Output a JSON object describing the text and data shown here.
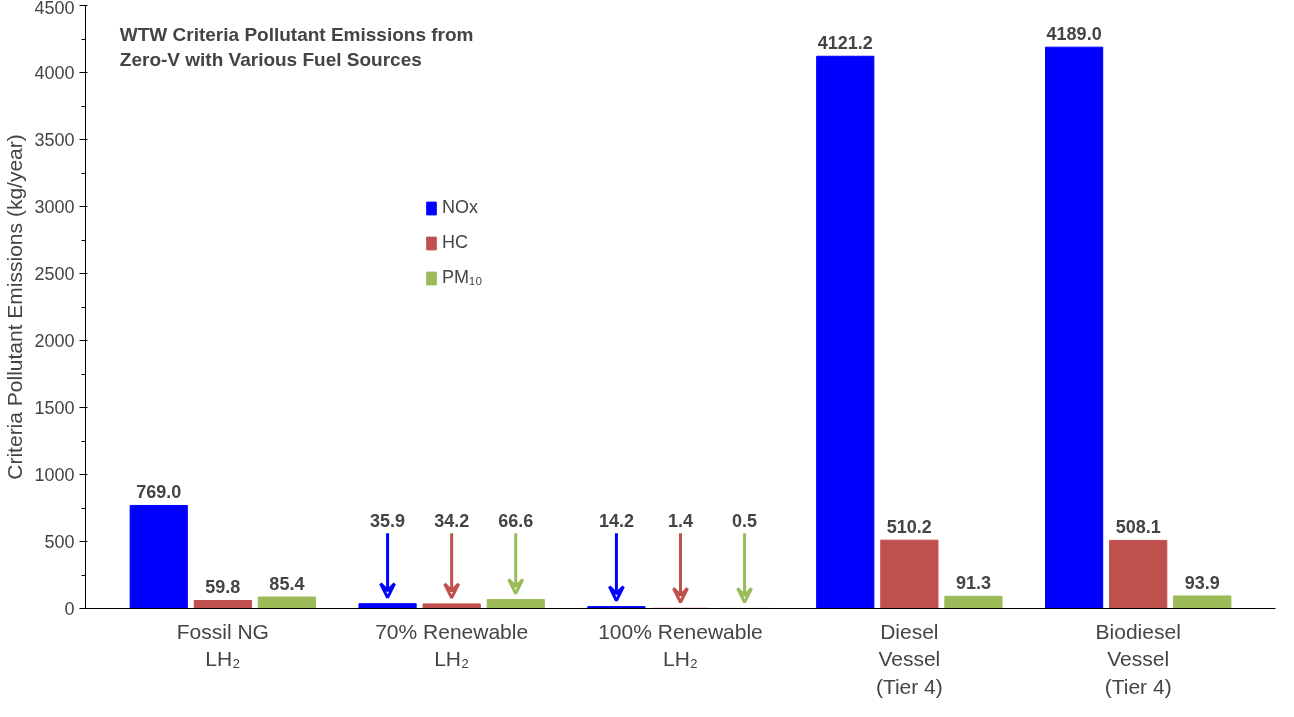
{
  "chart_data": {
    "type": "bar",
    "title": "WTW Criteria Pollutant Emissions from\nZero-V with Various Fuel Sources",
    "ylabel": "Criteria Pollutant Emissions (kg/year)",
    "categories": [
      "Fossil NG\nLH₂",
      "70% Renewable\nLH₂",
      "100% Renewable\nLH₂",
      "Diesel\nVessel\n(Tier 4)",
      "Biodiesel\nVessel\n(Tier 4)"
    ],
    "series": [
      {
        "name": "NOx",
        "color": "#0000ff",
        "values": [
          769.0,
          35.9,
          14.2,
          4121.2,
          4189.0
        ],
        "value_labels": [
          "769.0",
          "35.9",
          "14.2",
          "4121.2",
          "4189.0"
        ]
      },
      {
        "name": "HC",
        "color": "#c0504d",
        "values": [
          59.8,
          34.2,
          1.4,
          510.2,
          508.1
        ],
        "value_labels": [
          "59.8",
          "34.2",
          "1.4",
          "510.2",
          "508.1"
        ]
      },
      {
        "name": "PM₁₀",
        "color": "#9bbb59",
        "values": [
          85.4,
          66.6,
          0.5,
          91.3,
          93.9
        ],
        "value_labels": [
          "85.4",
          "66.6",
          "0.5",
          "91.3",
          "93.9"
        ]
      }
    ],
    "ylim": [
      0,
      4500
    ],
    "yticks": [
      0,
      500,
      1000,
      1500,
      2000,
      2500,
      3000,
      3500,
      4000,
      4500
    ],
    "grid": false,
    "legend": "left"
  }
}
